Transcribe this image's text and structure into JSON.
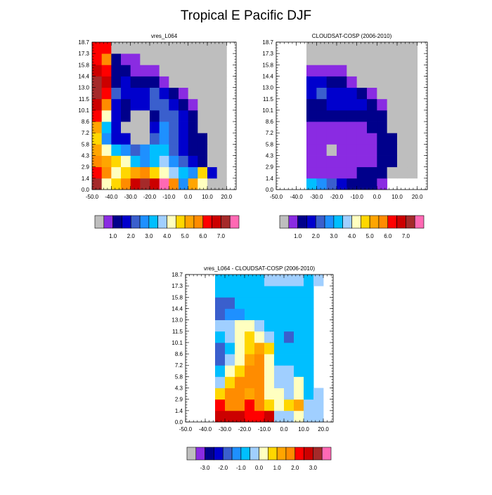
{
  "figure": {
    "title": "Tropical E Pacific DJF"
  },
  "chart_data": [
    {
      "type": "heatmap",
      "title": "vres_L064",
      "xlabel": "",
      "ylabel": "",
      "x": [
        -47.5,
        -42.5,
        -37.5,
        -32.5,
        -27.5,
        -22.5,
        -17.5,
        -12.5,
        -7.5,
        -2.5,
        2.5,
        7.5,
        12.5,
        17.5
      ],
      "y": [
        0.7,
        2.1,
        3.6,
        5.05,
        6.5,
        7.9,
        9.35,
        10.8,
        12.25,
        13.7,
        15.1,
        16.55,
        18.0
      ],
      "xlim": [
        -50,
        25
      ],
      "ylim": [
        0,
        18.7
      ],
      "xticks": [
        "-50.0",
        "-40.0",
        "-30.0",
        "-20.0",
        "-10.0",
        "0.0",
        "10.0",
        "20.0"
      ],
      "yticks": [
        "0.0",
        "1.4",
        "2.9",
        "4.3",
        "5.8",
        "7.2",
        "8.6",
        "10.1",
        "11.5",
        "13.0",
        "14.4",
        "15.8",
        "17.3",
        "18.7"
      ],
      "z": [
        [
          14,
          8,
          9,
          11,
          13,
          14,
          13,
          15,
          11,
          5,
          10,
          8,
          -1,
          -1
        ],
        [
          12,
          11,
          8,
          9,
          10,
          11,
          9,
          8,
          7,
          6,
          5,
          9,
          3,
          -1
        ],
        [
          11,
          10,
          9,
          8,
          6,
          5,
          6,
          7,
          5,
          4,
          3,
          2,
          -1,
          -1
        ],
        [
          10,
          8,
          6,
          5,
          4,
          5,
          6,
          6,
          4,
          3,
          2,
          2,
          -1,
          -1
        ],
        [
          9,
          5,
          3,
          3,
          -1,
          -1,
          4,
          5,
          4,
          3,
          2,
          2,
          -1,
          -1
        ],
        [
          10,
          6,
          3,
          -1,
          -1,
          -1,
          3,
          5,
          4,
          3,
          2,
          -1,
          -1,
          -1
        ],
        [
          12,
          8,
          3,
          2,
          -1,
          -1,
          2,
          4,
          4,
          3,
          2,
          -1,
          -1,
          -1
        ],
        [
          13,
          11,
          3,
          2,
          3,
          3,
          4,
          4,
          3,
          2,
          1,
          -1,
          -1,
          -1
        ],
        [
          14,
          12,
          4,
          3,
          3,
          3,
          4,
          3,
          2,
          1,
          -1,
          -1,
          -1,
          -1
        ],
        [
          14,
          13,
          2,
          3,
          2,
          2,
          2,
          1,
          -1,
          -1,
          -1,
          -1,
          -1,
          -1
        ],
        [
          13,
          12,
          2,
          2,
          1,
          1,
          1,
          -1,
          -1,
          -1,
          -1,
          -1,
          -1,
          -1
        ],
        [
          12,
          11,
          2,
          1,
          1,
          -1,
          -1,
          -1,
          -1,
          -1,
          -1,
          -1,
          -1,
          -1
        ],
        [
          12,
          12,
          -1,
          -1,
          -1,
          -1,
          -1,
          -1,
          -1,
          -1,
          -1,
          -1,
          -1,
          -1
        ]
      ],
      "colorbar": {
        "labels": [
          "1.0",
          "2.0",
          "3.0",
          "4.0",
          "5.0",
          "6.0",
          "7.0"
        ]
      }
    },
    {
      "type": "heatmap",
      "title": "CLOUDSAT-COSP (2006-2010)",
      "xlabel": "",
      "ylabel": "",
      "x": [
        -47.5,
        -42.5,
        -37.5,
        -32.5,
        -27.5,
        -22.5,
        -17.5,
        -12.5,
        -7.5,
        -2.5,
        2.5,
        7.5,
        12.5,
        17.5
      ],
      "y": [
        0.7,
        2.1,
        3.6,
        5.05,
        6.5,
        7.9,
        9.35,
        10.8,
        12.25,
        13.7,
        15.1,
        16.55,
        18.0
      ],
      "xlim": [
        -50,
        25
      ],
      "ylim": [
        0,
        18.7
      ],
      "xticks": [
        "-50.0",
        "-40.0",
        "-30.0",
        "-20.0",
        "-10.0",
        "0.0",
        "10.0",
        "20.0"
      ],
      "yticks": [
        "0.0",
        "1.4",
        "2.9",
        "4.3",
        "5.8",
        "7.2",
        "8.6",
        "10.1",
        "11.5",
        "13.0",
        "14.4",
        "15.8",
        "17.3",
        "18.7"
      ],
      "z": [
        [
          null,
          null,
          null,
          6,
          5,
          4,
          3,
          2,
          2,
          2,
          1,
          null,
          null,
          null
        ],
        [
          null,
          null,
          null,
          1,
          1,
          1,
          1,
          1,
          2,
          2,
          2,
          -1,
          -1,
          -1
        ],
        [
          null,
          null,
          null,
          1,
          1,
          1,
          1,
          1,
          1,
          1,
          2,
          2,
          -1,
          -1
        ],
        [
          null,
          null,
          null,
          1,
          1,
          -1,
          1,
          1,
          1,
          1,
          2,
          2,
          -1,
          -1
        ],
        [
          null,
          null,
          null,
          1,
          1,
          1,
          1,
          1,
          1,
          1,
          2,
          2,
          -1,
          -1
        ],
        [
          null,
          null,
          null,
          1,
          1,
          1,
          1,
          1,
          1,
          2,
          2,
          -1,
          -1,
          -1
        ],
        [
          null,
          null,
          null,
          2,
          2,
          2,
          2,
          2,
          2,
          2,
          2,
          -1,
          -1,
          -1
        ],
        [
          null,
          null,
          null,
          2,
          2,
          3,
          3,
          3,
          3,
          2,
          1,
          -1,
          -1,
          -1
        ],
        [
          null,
          null,
          null,
          3,
          4,
          3,
          3,
          3,
          2,
          1,
          -1,
          -1,
          -1,
          -1
        ],
        [
          null,
          null,
          null,
          3,
          3,
          2,
          2,
          1,
          -1,
          -1,
          -1,
          -1,
          -1,
          -1
        ],
        [
          null,
          null,
          null,
          1,
          1,
          1,
          1,
          -1,
          -1,
          -1,
          -1,
          -1,
          -1,
          -1
        ],
        [
          null,
          null,
          null,
          -1,
          -1,
          -1,
          -1,
          -1,
          -1,
          -1,
          -1,
          -1,
          -1,
          -1
        ],
        [
          null,
          null,
          null,
          -1,
          -1,
          -1,
          -1,
          -1,
          -1,
          -1,
          -1,
          -1,
          -1,
          -1
        ]
      ],
      "colorbar": {
        "labels": [
          "1.0",
          "2.0",
          "3.0",
          "4.0",
          "5.0",
          "6.0",
          "7.0"
        ]
      }
    },
    {
      "type": "heatmap",
      "title": "vres_L064 - CLOUDSAT-COSP (2006-2010)",
      "xlabel": "",
      "ylabel": "",
      "x": [
        -47.5,
        -42.5,
        -37.5,
        -32.5,
        -27.5,
        -22.5,
        -17.5,
        -12.5,
        -7.5,
        -2.5,
        2.5,
        7.5,
        12.5,
        17.5
      ],
      "y": [
        0.7,
        2.1,
        3.6,
        5.05,
        6.5,
        7.9,
        9.35,
        10.8,
        12.25,
        13.7,
        15.1,
        16.55,
        18.0
      ],
      "xlim": [
        -50,
        25
      ],
      "ylim": [
        0,
        18.7
      ],
      "xticks": [
        "-50.0",
        "-40.0",
        "-30.0",
        "-20.0",
        "-10.0",
        "0.0",
        "10.0",
        "20.0"
      ],
      "yticks": [
        "0.0",
        "1.4",
        "2.9",
        "4.3",
        "5.8",
        "7.2",
        "8.6",
        "10.1",
        "11.5",
        "13.0",
        "14.4",
        "15.8",
        "17.3",
        "18.7"
      ],
      "z": [
        [
          null,
          null,
          null,
          13,
          13,
          13,
          12,
          12,
          13,
          7,
          7,
          8,
          7,
          7
        ],
        [
          null,
          null,
          null,
          12,
          11,
          11,
          12,
          11,
          9,
          8,
          9,
          10,
          7,
          7
        ],
        [
          null,
          null,
          null,
          9,
          11,
          11,
          10,
          11,
          8,
          8,
          7,
          8,
          6,
          7
        ],
        [
          null,
          null,
          null,
          7,
          9,
          11,
          11,
          11,
          8,
          7,
          7,
          8,
          6,
          null
        ],
        [
          null,
          null,
          null,
          6,
          8,
          9,
          11,
          11,
          8,
          7,
          7,
          6,
          6,
          null
        ],
        [
          null,
          null,
          null,
          4,
          7,
          8,
          10,
          11,
          8,
          6,
          6,
          6,
          6,
          null
        ],
        [
          null,
          null,
          null,
          4,
          6,
          8,
          9,
          10,
          9,
          6,
          6,
          6,
          6,
          null
        ],
        [
          null,
          null,
          null,
          6,
          7,
          8,
          9,
          8,
          7,
          6,
          4,
          6,
          6,
          null
        ],
        [
          null,
          null,
          null,
          7,
          7,
          8,
          8,
          7,
          6,
          6,
          6,
          6,
          6,
          null
        ],
        [
          null,
          null,
          null,
          4,
          5,
          5,
          6,
          6,
          6,
          6,
          6,
          6,
          6,
          null
        ],
        [
          null,
          null,
          null,
          4,
          4,
          6,
          6,
          6,
          6,
          6,
          6,
          6,
          6,
          null
        ],
        [
          null,
          null,
          null,
          6,
          6,
          6,
          6,
          6,
          6,
          6,
          6,
          6,
          6,
          null
        ],
        [
          null,
          null,
          null,
          6,
          6,
          6,
          6,
          6,
          7,
          7,
          7,
          7,
          6,
          7
        ]
      ],
      "colorbar": {
        "labels": [
          "-3.0",
          "-2.0",
          "-1.0",
          "0.0",
          "1.0",
          "2.0",
          "3.0"
        ]
      }
    }
  ],
  "palette": [
    "#bebebe",
    "#8a2be2",
    "#00008b",
    "#0000cd",
    "#3a5fcd",
    "#1e90ff",
    "#00bfff",
    "#a0cfff",
    "#ffffc0",
    "#ffd700",
    "#ffa500",
    "#ff8c00",
    "#ff0000",
    "#cc0000",
    "#a52a2a",
    "#ff69b4"
  ],
  "colors": {
    "missing": "#bebebe",
    "background": "#ffffff"
  }
}
